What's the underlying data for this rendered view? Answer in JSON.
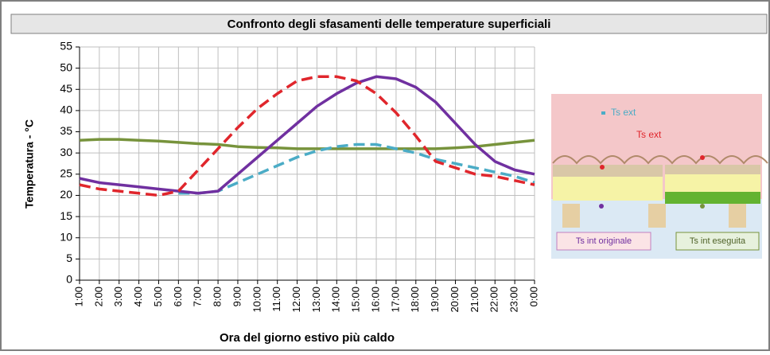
{
  "chart_data": {
    "type": "line",
    "title": "Confronto degli sfasamenti delle temperature superficiali",
    "ylabel": "Temperatura - °C",
    "xlabel": "Ora del giorno estivo più caldo",
    "categories": [
      "1:00",
      "2:00",
      "3:00",
      "4:00",
      "5:00",
      "6:00",
      "7:00",
      "8:00",
      "9:00",
      "10:00",
      "11:00",
      "12:00",
      "13:00",
      "14:00",
      "15:00",
      "16:00",
      "17:00",
      "18:00",
      "19:00",
      "20:00",
      "21:00",
      "22:00",
      "23:00",
      "0:00"
    ],
    "ylim": [
      0,
      55
    ],
    "yticks": [
      0,
      5,
      10,
      15,
      20,
      25,
      30,
      35,
      40,
      45,
      50,
      55
    ],
    "grid": true,
    "series": [
      {
        "name": "Ts int eseguita",
        "color": "#77933c",
        "dash": false,
        "values": [
          33,
          33.2,
          33.2,
          33,
          32.8,
          32.5,
          32.2,
          32,
          31.5,
          31.3,
          31.2,
          31,
          31,
          31,
          31,
          31,
          31,
          31,
          31,
          31.2,
          31.5,
          32,
          32.5,
          33
        ]
      },
      {
        "name": "Ts ext",
        "color": "#4bacc6",
        "dash": true,
        "values": [
          null,
          null,
          null,
          null,
          null,
          20.5,
          20.5,
          21,
          23,
          25,
          27,
          29,
          30.5,
          31.5,
          32,
          32,
          31,
          30,
          28.5,
          27.5,
          26.5,
          25.5,
          24.5,
          23
        ]
      },
      {
        "name": "Ts int originale",
        "color": "#7030a0",
        "dash": false,
        "values": [
          24,
          23,
          22.5,
          22,
          21.5,
          21,
          20.5,
          21,
          25,
          29,
          33,
          37,
          41,
          44,
          46.5,
          48,
          47.5,
          45.5,
          42,
          37,
          32,
          28,
          26,
          25
        ]
      },
      {
        "name": "Ts ext",
        "color": "#e0262c",
        "dash": true,
        "values": [
          22.5,
          21.5,
          21,
          20.5,
          20,
          21,
          26,
          31,
          36,
          40.5,
          44,
          47,
          48,
          48,
          47,
          44,
          39.5,
          34,
          28,
          26.5,
          25,
          24.5,
          23.5,
          22.5
        ]
      }
    ]
  }
}
